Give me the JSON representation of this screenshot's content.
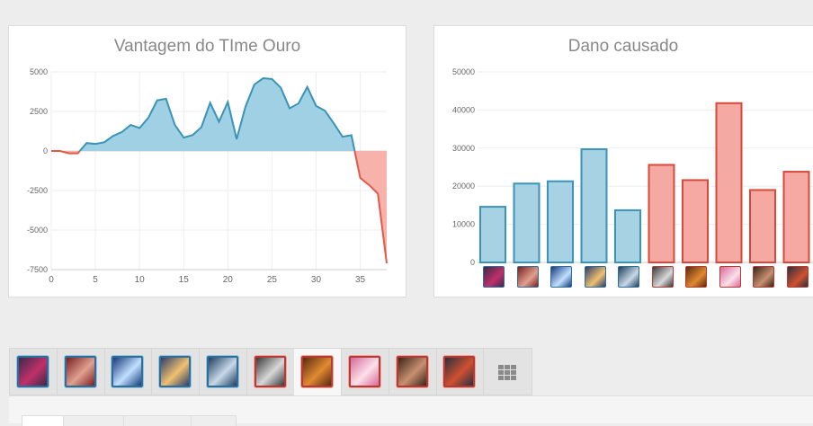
{
  "chart_data": [
    {
      "type": "area",
      "title": "Vantagem do TIme Ouro",
      "xlabel": "",
      "ylabel": "",
      "xlim": [
        0,
        38
      ],
      "ylim": [
        -7500,
        5000
      ],
      "x_ticks": [
        "0",
        "5",
        "10",
        "15",
        "20",
        "25",
        "30",
        "35"
      ],
      "y_ticks": [
        "5000",
        "2500",
        "0",
        "-2500",
        "-5000",
        "-7500"
      ],
      "grid": true,
      "positive_color": "#3a93b8",
      "negative_color": "#e05a4a",
      "points": [
        [
          0,
          0
        ],
        [
          1,
          0
        ],
        [
          2,
          -150
        ],
        [
          3,
          -150
        ],
        [
          4,
          500
        ],
        [
          5,
          450
        ],
        [
          6,
          550
        ],
        [
          7,
          950
        ],
        [
          8,
          1200
        ],
        [
          9,
          1650
        ],
        [
          10,
          1450
        ],
        [
          11,
          2100
        ],
        [
          12,
          3200
        ],
        [
          13,
          3300
        ],
        [
          14,
          1650
        ],
        [
          15,
          850
        ],
        [
          16,
          1000
        ],
        [
          17,
          1500
        ],
        [
          18,
          3050
        ],
        [
          19,
          1850
        ],
        [
          20,
          3100
        ],
        [
          21,
          750
        ],
        [
          22,
          2800
        ],
        [
          23,
          4200
        ],
        [
          24,
          4600
        ],
        [
          25,
          4550
        ],
        [
          26,
          4000
        ],
        [
          27,
          2700
        ],
        [
          28,
          3000
        ],
        [
          29,
          4050
        ],
        [
          30,
          2850
        ],
        [
          31,
          2550
        ],
        [
          32,
          1750
        ],
        [
          33,
          900
        ],
        [
          34,
          1000
        ],
        [
          35,
          -1700
        ],
        [
          36,
          -2150
        ],
        [
          37,
          -2700
        ],
        [
          38,
          -7100
        ]
      ]
    },
    {
      "type": "bar",
      "title": "Dano causado",
      "xlabel": "",
      "ylabel": "",
      "ylim": [
        0,
        50000
      ],
      "y_ticks": [
        "50000",
        "40000",
        "30000",
        "20000",
        "10000",
        "0"
      ],
      "grid": true,
      "values": [
        14600,
        20700,
        21300,
        29700,
        13700,
        25600,
        21600,
        41800,
        19000,
        23800
      ],
      "teams": [
        "blue",
        "blue",
        "blue",
        "blue",
        "blue",
        "red",
        "red",
        "red",
        "red",
        "red"
      ],
      "blue_fill": "#a7d2e4",
      "blue_stroke": "#3a93b8",
      "red_fill": "#f4aaa2",
      "red_stroke": "#d9483b"
    }
  ],
  "champions": [
    {
      "icon": "champion-1-icon",
      "team": "blue",
      "c1": "#3b2a4a",
      "c2": "#c0306a"
    },
    {
      "icon": "champion-2-icon",
      "team": "blue",
      "c1": "#7a1f1f",
      "c2": "#e0a090"
    },
    {
      "icon": "champion-3-icon",
      "team": "blue",
      "c1": "#1a3a7a",
      "c2": "#bfe0ff"
    },
    {
      "icon": "champion-4-icon",
      "team": "blue",
      "c1": "#2e3f6a",
      "c2": "#f0c070"
    },
    {
      "icon": "champion-5-icon",
      "team": "blue",
      "c1": "#1f3f5f",
      "c2": "#c8d8e8"
    },
    {
      "icon": "champion-6-icon",
      "team": "red",
      "c1": "#3a3a3a",
      "c2": "#d8d8d8"
    },
    {
      "icon": "champion-7-icon",
      "team": "red",
      "c1": "#5a2a10",
      "c2": "#e08a30"
    },
    {
      "icon": "champion-8-icon",
      "team": "red",
      "c1": "#d86a9a",
      "c2": "#fbe0ea"
    },
    {
      "icon": "champion-9-icon",
      "team": "red",
      "c1": "#3a2418",
      "c2": "#c89070"
    },
    {
      "icon": "champion-10-icon",
      "team": "red",
      "c1": "#2a3040",
      "c2": "#d05030"
    }
  ],
  "active_tab_index": 6,
  "table_tab_icon": "table-grid-icon"
}
